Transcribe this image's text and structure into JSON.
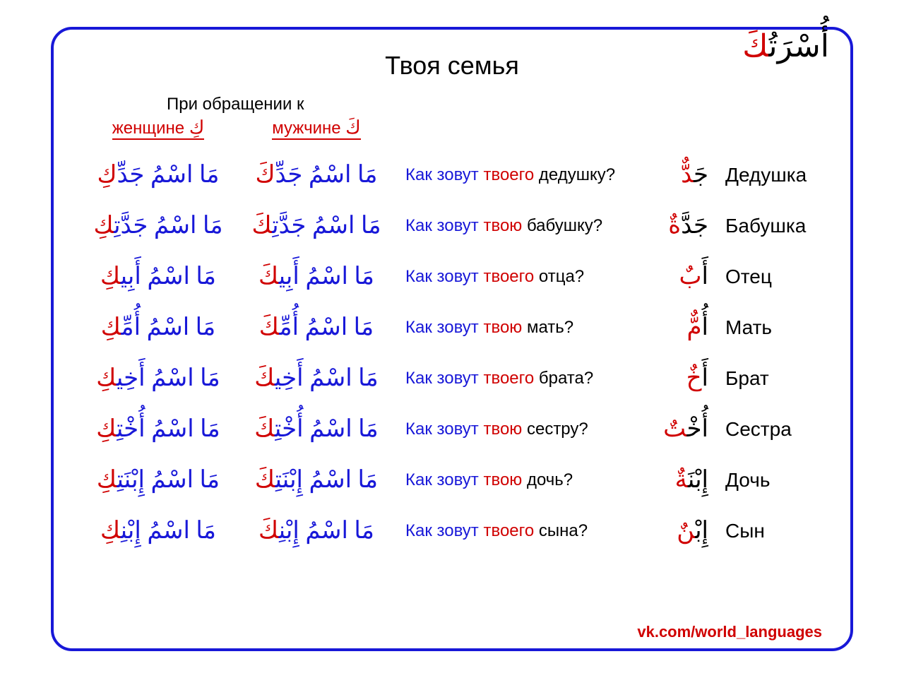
{
  "colors": {
    "border": "#1818d8",
    "red": "#d00000",
    "blue": "#1818d8",
    "black": "#000000",
    "bg": "#ffffff"
  },
  "fontsize": {
    "title_ru": 36,
    "title_ar": 44,
    "subheader": 24,
    "col_header": 24,
    "ar_phrase": 34,
    "ru_phrase": 24,
    "ar_word": 34,
    "ru_word": 28,
    "footer": 22
  },
  "header": {
    "title_ru": "Твоя семья",
    "title_ar_black": "أُسْرَتُ",
    "title_ar_red": "كَ",
    "subheader": "При обращении к",
    "col_fem_label": "женщине",
    "col_fem_ar": "كِ",
    "col_masc_label": "мужчине",
    "col_masc_ar": "كَ"
  },
  "table": {
    "rows": [
      {
        "fem_black": "مَا اسْمُ جَدِّ",
        "fem_red": "كِ",
        "masc_black": "مَا اسْمُ جَدِّ",
        "masc_red": "كَ",
        "ru_q_pre": "Как зовут ",
        "ru_q_red": "твоего",
        "ru_q_post": " дедушку?",
        "ar_word_black": "جَ",
        "ar_word_red": "دٌّ",
        "ru_word": "Дедушка"
      },
      {
        "fem_black": "مَا اسْمُ جَدَّتِ",
        "fem_red": "كِ",
        "masc_black": "مَا اسْمُ جَدَّتِ",
        "masc_red": "كَ",
        "ru_q_pre": "Как зовут ",
        "ru_q_red": "твою",
        "ru_q_post": " бабушку?",
        "ar_word_black": "جَدَّ",
        "ar_word_red": "ةٌ",
        "ru_word": "Бабушка"
      },
      {
        "fem_black": "مَا اسْمُ أَبِي",
        "fem_red": "كِ",
        "masc_black": "مَا اسْمُ أَبِي",
        "masc_red": "كَ",
        "ru_q_pre": "Как зовут ",
        "ru_q_red": "твоего",
        "ru_q_post": " отца?",
        "ar_word_black": "أَ",
        "ar_word_red": "بٌ",
        "ru_word": "Отец"
      },
      {
        "fem_black": "مَا اسْمُ أُمِّ",
        "fem_red": "كِ",
        "masc_black": "مَا اسْمُ أُمِّ",
        "masc_red": "كَ",
        "ru_q_pre": "Как зовут ",
        "ru_q_red": "твою",
        "ru_q_post": " мать?",
        "ar_word_black": "أُ",
        "ar_word_red": "مٌّ",
        "ru_word": "Мать"
      },
      {
        "fem_black": "مَا اسْمُ أَخِي",
        "fem_red": "كِ",
        "masc_black": "مَا اسْمُ أَخِي",
        "masc_red": "كَ",
        "ru_q_pre": "Как зовут ",
        "ru_q_red": "твоего",
        "ru_q_post": " брата?",
        "ar_word_black": "أَ",
        "ar_word_red": "خٌ",
        "ru_word": "Брат"
      },
      {
        "fem_black": "مَا اسْمُ أُخْتِ",
        "fem_red": "كِ",
        "masc_black": "مَا اسْمُ أُخْتِ",
        "masc_red": "كَ",
        "ru_q_pre": "Как зовут ",
        "ru_q_red": "твою",
        "ru_q_post": " сестру?",
        "ar_word_black": "أُخْ",
        "ar_word_red": "تٌ",
        "ru_word": "Сестра"
      },
      {
        "fem_black": "مَا اسْمُ إِبْنَتِ",
        "fem_red": "كِ",
        "masc_black": "مَا اسْمُ إِبْنَتِ",
        "masc_red": "كَ",
        "ru_q_pre": "Как зовут ",
        "ru_q_red": "твою",
        "ru_q_post": " дочь?",
        "ar_word_black": "إِبْنَ",
        "ar_word_red": "ةٌ",
        "ru_word": "Дочь"
      },
      {
        "fem_black": "مَا اسْمُ إِبْنِ",
        "fem_red": "كِ",
        "masc_black": "مَا اسْمُ إِبْنِ",
        "masc_red": "كَ",
        "ru_q_pre": "Как зовут ",
        "ru_q_red": "твоего",
        "ru_q_post": " сына?",
        "ar_word_black": "إِبْ",
        "ar_word_red": "نٌ",
        "ru_word": "Сын"
      }
    ]
  },
  "footer": {
    "text": "vk.com/world_languages"
  }
}
